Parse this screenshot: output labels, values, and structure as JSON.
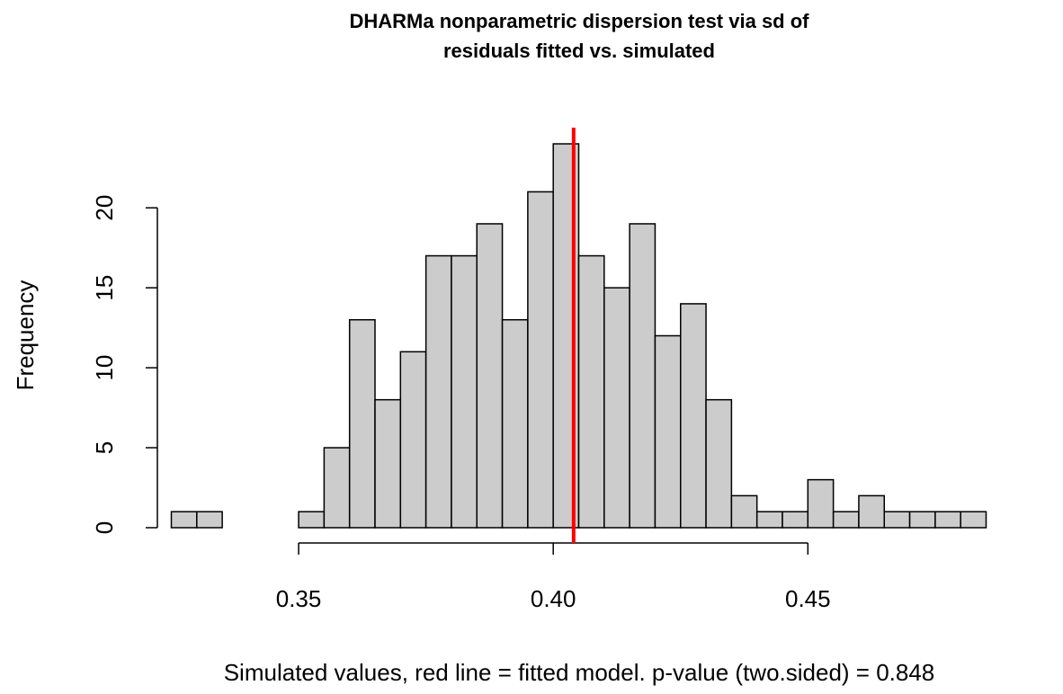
{
  "chart_data": {
    "type": "histogram",
    "title": [
      "DHARMa nonparametric dispersion test via sd of",
      "residuals fitted vs. simulated"
    ],
    "x_label": "Simulated values, red line = fitted model. p-value (two.sided) = 0.848",
    "y_label": "Frequency",
    "bins": [
      0.325,
      0.33,
      0.335,
      0.34,
      0.345,
      0.35,
      0.355,
      0.36,
      0.365,
      0.37,
      0.375,
      0.38,
      0.385,
      0.39,
      0.395,
      0.4,
      0.405,
      0.41,
      0.415,
      0.42,
      0.425,
      0.43,
      0.435,
      0.44,
      0.445,
      0.45,
      0.455,
      0.46,
      0.465,
      0.47,
      0.475,
      0.48,
      0.485
    ],
    "values": [
      1,
      1,
      0,
      0,
      0,
      1,
      5,
      13,
      8,
      11,
      17,
      17,
      19,
      13,
      21,
      24,
      17,
      15,
      19,
      12,
      14,
      8,
      2,
      1,
      1,
      3,
      1,
      2,
      1,
      1,
      1,
      1
    ],
    "color": "#cccccc",
    "reference_line": {
      "value": 0.404,
      "color": "#ff0000"
    },
    "xlim": [
      0.325,
      0.485
    ],
    "xticks": [
      0.35,
      {
        "value": 0.4,
        "label": "0.40"
      },
      0.45
    ],
    "ylim": [
      0,
      24
    ],
    "yticks": [
      0,
      5,
      10,
      15,
      20
    ]
  }
}
